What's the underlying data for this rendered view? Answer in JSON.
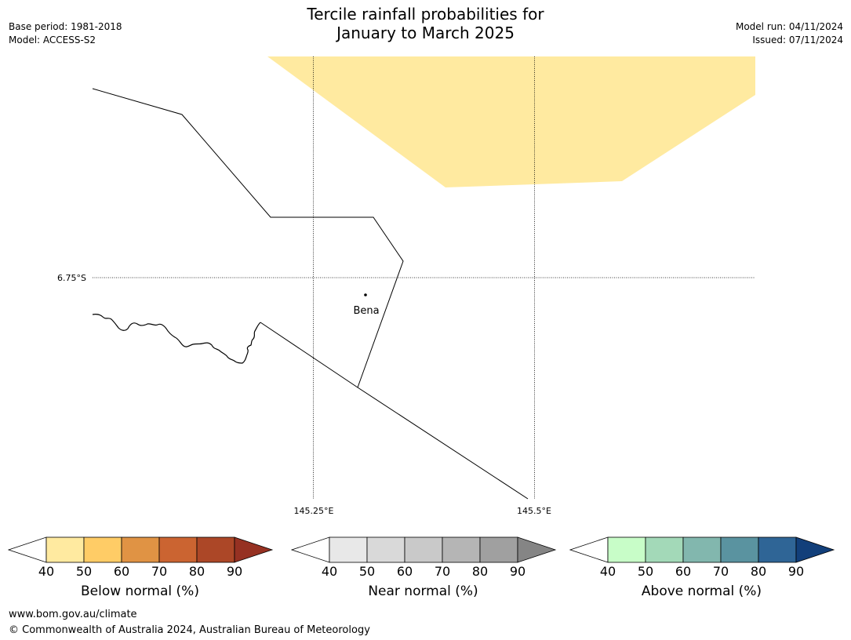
{
  "header": {
    "title_line1": "Tercile rainfall probabilities for",
    "title_line2": "January to March 2025",
    "base_period": "Base period: 1981-2018",
    "model": "Model: ACCESS-S2",
    "model_run": "Model run: 04/11/2024",
    "issued": "Issued: 07/11/2024"
  },
  "map": {
    "place_label": "Bena",
    "lat_label": "6.75°S",
    "lon_labels": [
      "145.25°E",
      "145.5°E"
    ],
    "shade_color": "#ffeaa0",
    "shade_category": "Below normal 40-50%"
  },
  "legends": [
    {
      "title": "Below normal (%)",
      "ticks": [
        "40",
        "50",
        "60",
        "70",
        "80",
        "90"
      ],
      "colors": [
        "#ffffff",
        "#ffeaa0",
        "#ffcc66",
        "#e09344",
        "#cb6431",
        "#ac4727",
        "#963122"
      ]
    },
    {
      "title": "Near normal (%)",
      "ticks": [
        "40",
        "50",
        "60",
        "70",
        "80",
        "90"
      ],
      "colors": [
        "#ffffff",
        "#e8e8e8",
        "#d9d9d9",
        "#c9c9c9",
        "#b5b5b5",
        "#a0a0a0",
        "#858585"
      ]
    },
    {
      "title": "Above normal (%)",
      "ticks": [
        "40",
        "50",
        "60",
        "70",
        "80",
        "90"
      ],
      "colors": [
        "#ffffff",
        "#c8fdc8",
        "#a3d9b8",
        "#82b7ae",
        "#5a93a0",
        "#2f6596",
        "#123f7a"
      ]
    }
  ],
  "footer": {
    "url": "www.bom.gov.au/climate",
    "copyright": "© Commonwealth of Australia 2024, Australian Bureau of Meteorology"
  }
}
